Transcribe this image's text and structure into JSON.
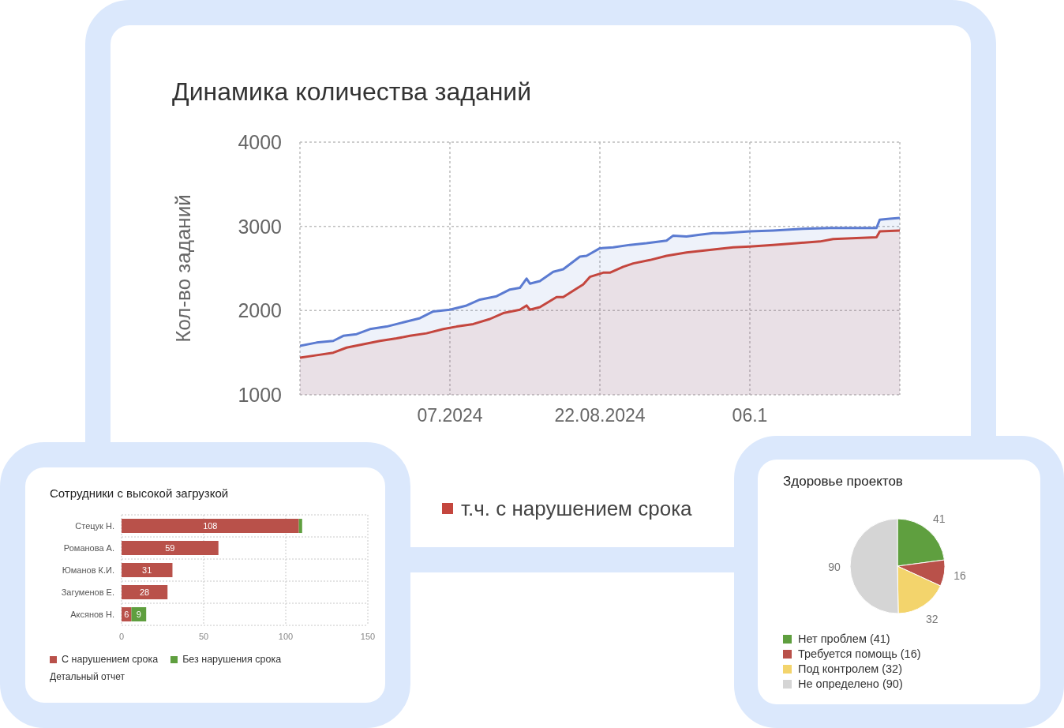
{
  "chart_data": [
    {
      "type": "area",
      "title": "Динамика количества заданий",
      "ylabel": "Кол-во заданий",
      "xlim": [
        "2024-05-24",
        "2024-11-20"
      ],
      "xticks": [
        {
          "value": "2024-05-24",
          "label": null
        },
        {
          "value": "2024-07-08",
          "label": "07.2024"
        },
        {
          "value": "2024-08-22",
          "label": "22.08.2024"
        },
        {
          "value": "2024-10-06",
          "label": "06.1"
        },
        {
          "value": "2024-11-20",
          "label": null
        }
      ],
      "ylim": [
        1000,
        4000
      ],
      "yticks": [
        1000,
        2000,
        3000,
        4000
      ],
      "grid": true,
      "legend": "bottom",
      "series": [
        {
          "color": "#5b7bd1",
          "x": [
            "2024-05-24",
            "2024-05-29",
            "2024-06-03",
            "2024-06-06",
            "2024-06-10",
            "2024-06-14",
            "2024-06-19",
            "2024-06-24",
            "2024-06-29",
            "2024-07-03",
            "2024-07-08",
            "2024-07-13",
            "2024-07-17",
            "2024-07-22",
            "2024-07-26",
            "2024-07-29",
            "2024-07-31",
            "2024-08-01",
            "2024-08-04",
            "2024-08-08",
            "2024-08-11",
            "2024-08-16",
            "2024-08-18",
            "2024-08-22",
            "2024-08-26",
            "2024-08-31",
            "2024-09-05",
            "2024-09-11",
            "2024-09-13",
            "2024-09-17",
            "2024-09-21",
            "2024-09-25",
            "2024-09-28",
            "2024-10-06",
            "2024-10-13",
            "2024-10-22",
            "2024-10-30",
            "2024-11-06",
            "2024-11-13",
            "2024-11-14",
            "2024-11-17",
            "2024-11-20"
          ],
          "values": [
            1580,
            1620,
            1640,
            1700,
            1720,
            1780,
            1810,
            1860,
            1910,
            1990,
            2010,
            2060,
            2130,
            2170,
            2250,
            2270,
            2380,
            2320,
            2350,
            2460,
            2490,
            2640,
            2650,
            2740,
            2750,
            2780,
            2800,
            2830,
            2890,
            2880,
            2900,
            2920,
            2920,
            2940,
            2950,
            2970,
            2980,
            2980,
            2980,
            3080,
            3090,
            3100
          ]
        },
        {
          "name": "т.ч. с нарушением срока",
          "color": "#c4463e",
          "x": [
            "2024-05-24",
            "2024-05-29",
            "2024-06-03",
            "2024-06-07",
            "2024-06-12",
            "2024-06-17",
            "2024-06-22",
            "2024-06-26",
            "2024-07-01",
            "2024-07-06",
            "2024-07-10",
            "2024-07-15",
            "2024-07-20",
            "2024-07-24",
            "2024-07-29",
            "2024-07-31",
            "2024-08-01",
            "2024-08-04",
            "2024-08-09",
            "2024-08-11",
            "2024-08-15",
            "2024-08-17",
            "2024-08-19",
            "2024-08-23",
            "2024-08-25",
            "2024-08-29",
            "2024-09-01",
            "2024-09-06",
            "2024-09-11",
            "2024-09-17",
            "2024-09-24",
            "2024-10-01",
            "2024-10-06",
            "2024-10-13",
            "2024-10-20",
            "2024-10-27",
            "2024-10-31",
            "2024-11-07",
            "2024-11-13",
            "2024-11-14",
            "2024-11-20"
          ],
          "values": [
            1440,
            1470,
            1500,
            1560,
            1600,
            1640,
            1670,
            1700,
            1730,
            1780,
            1810,
            1840,
            1900,
            1970,
            2010,
            2060,
            2010,
            2040,
            2160,
            2160,
            2260,
            2310,
            2400,
            2450,
            2450,
            2520,
            2560,
            2600,
            2650,
            2690,
            2720,
            2750,
            2760,
            2780,
            2800,
            2820,
            2850,
            2860,
            2870,
            2940,
            2950
          ]
        }
      ]
    },
    {
      "type": "bar",
      "orientation": "horizontal",
      "stacked": true,
      "title": "Сотрудники с высокой загрузкой",
      "categories": [
        "Стецук Н.",
        "Романова А.",
        "Юманов К.И.",
        "Загуменов Е.",
        "Аксянов Н."
      ],
      "xlim": [
        0,
        150
      ],
      "xticks": [
        0,
        50,
        100,
        150
      ],
      "grid": true,
      "legend": "bottom",
      "series": [
        {
          "name": "С нарушением срока",
          "color": "#b9514a",
          "values": [
            108,
            59,
            31,
            28,
            6
          ],
          "value_labels": [
            "108",
            "59",
            "31",
            "28",
            "6"
          ]
        },
        {
          "name": "Без нарушения срока",
          "color": "#5f9f3f",
          "values": [
            2,
            null,
            null,
            null,
            9
          ],
          "value_labels": [
            null,
            null,
            null,
            null,
            "9"
          ]
        }
      ],
      "annotations": [
        "Детальный отчет"
      ]
    },
    {
      "type": "pie",
      "title": "Здоровье проектов",
      "categories": [
        "Нет проблем (41)",
        "Требуется помощь (16)",
        "Под контролем (32)",
        "Не определено (90)"
      ],
      "values": [
        41,
        16,
        32,
        90
      ],
      "colors": [
        "#5f9f3f",
        "#b9514a",
        "#f3d46c",
        "#d5d5d5"
      ],
      "data_labels": true,
      "legend": "bottom"
    }
  ]
}
